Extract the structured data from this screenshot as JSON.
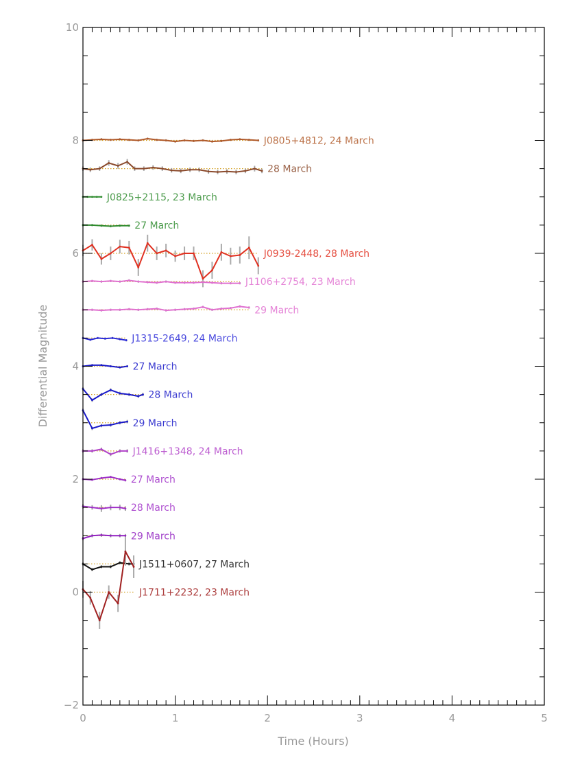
{
  "chart_data": {
    "type": "line",
    "xlabel": "Time (Hours)",
    "ylabel": "Differential Magnitude",
    "xlim": [
      0,
      5
    ],
    "ylim": [
      -2,
      10
    ],
    "xticks": [
      0,
      1,
      2,
      3,
      4,
      5
    ],
    "yticks": [
      -2,
      0,
      2,
      4,
      6,
      8,
      10
    ],
    "grid": false,
    "legend": "inline labels at right end of each series",
    "series": [
      {
        "name": "J0805+4812, 24 March",
        "color": "#b05a2a",
        "offset": 8.0,
        "x": [
          0.0,
          0.1,
          0.2,
          0.3,
          0.4,
          0.5,
          0.6,
          0.7,
          0.8,
          0.9,
          1.0,
          1.1,
          1.2,
          1.3,
          1.4,
          1.5,
          1.6,
          1.7,
          1.8,
          1.9
        ],
        "y": [
          8.0,
          8.01,
          8.02,
          8.01,
          8.02,
          8.01,
          8.0,
          8.03,
          8.01,
          8.0,
          7.98,
          8.0,
          7.99,
          8.0,
          7.98,
          7.99,
          8.01,
          8.02,
          8.01,
          8.0
        ],
        "err": [
          0.02,
          0.02,
          0.02,
          0.02,
          0.02,
          0.02,
          0.02,
          0.02,
          0.02,
          0.02,
          0.02,
          0.02,
          0.02,
          0.02,
          0.02,
          0.02,
          0.02,
          0.02,
          0.02,
          0.02
        ]
      },
      {
        "name": "28 March",
        "color": "#8b4a2c",
        "offset": 7.5,
        "x": [
          0.0,
          0.08,
          0.18,
          0.28,
          0.38,
          0.48,
          0.56,
          0.66,
          0.76,
          0.86,
          0.96,
          1.06,
          1.16,
          1.26,
          1.36,
          1.46,
          1.56,
          1.66,
          1.76,
          1.86,
          1.94
        ],
        "y": [
          7.5,
          7.48,
          7.5,
          7.6,
          7.55,
          7.62,
          7.5,
          7.5,
          7.52,
          7.5,
          7.47,
          7.46,
          7.48,
          7.48,
          7.45,
          7.44,
          7.45,
          7.44,
          7.46,
          7.5,
          7.46
        ],
        "err": [
          0.04,
          0.04,
          0.04,
          0.05,
          0.05,
          0.05,
          0.04,
          0.04,
          0.04,
          0.04,
          0.04,
          0.04,
          0.04,
          0.04,
          0.04,
          0.04,
          0.04,
          0.04,
          0.04,
          0.05,
          0.04
        ]
      },
      {
        "name": "J0825+2115, 23 March",
        "color": "#2e8b2e",
        "offset": 7.0,
        "x": [
          0.0,
          0.05,
          0.1,
          0.15,
          0.2
        ],
        "y": [
          7.0,
          7.0,
          7.0,
          7.0,
          7.0
        ],
        "err": [
          0.01,
          0.01,
          0.01,
          0.01,
          0.01
        ]
      },
      {
        "name": "27 March",
        "color": "#2e8b2e",
        "offset": 6.5,
        "x": [
          0.0,
          0.1,
          0.2,
          0.3,
          0.4,
          0.5
        ],
        "y": [
          6.5,
          6.5,
          6.49,
          6.48,
          6.49,
          6.49
        ],
        "err": [
          0.02,
          0.02,
          0.02,
          0.02,
          0.02,
          0.02
        ]
      },
      {
        "name": "J0939-2448, 28 March",
        "color": "#e03020",
        "offset": 6.0,
        "x": [
          0.0,
          0.1,
          0.2,
          0.3,
          0.4,
          0.5,
          0.6,
          0.7,
          0.8,
          0.9,
          1.0,
          1.1,
          1.2,
          1.3,
          1.4,
          1.5,
          1.6,
          1.7,
          1.8,
          1.9
        ],
        "y": [
          6.05,
          6.15,
          5.9,
          6.0,
          6.12,
          6.1,
          5.75,
          6.18,
          6.0,
          6.05,
          5.95,
          6.0,
          6.0,
          5.55,
          5.7,
          6.02,
          5.95,
          5.97,
          6.1,
          5.78
        ],
        "err": [
          0.1,
          0.1,
          0.1,
          0.12,
          0.12,
          0.12,
          0.15,
          0.15,
          0.12,
          0.12,
          0.1,
          0.12,
          0.12,
          0.15,
          0.15,
          0.15,
          0.15,
          0.15,
          0.2,
          0.15
        ]
      },
      {
        "name": "J1106+2754, 23 March",
        "color": "#e070d0",
        "offset": 5.5,
        "x": [
          0.0,
          0.1,
          0.2,
          0.3,
          0.4,
          0.5,
          0.6,
          0.7,
          0.8,
          0.9,
          1.0,
          1.1,
          1.2,
          1.3,
          1.4,
          1.5,
          1.6,
          1.7
        ],
        "y": [
          5.5,
          5.51,
          5.5,
          5.51,
          5.5,
          5.52,
          5.5,
          5.49,
          5.48,
          5.5,
          5.48,
          5.48,
          5.48,
          5.49,
          5.48,
          5.47,
          5.47,
          5.47
        ],
        "err": [
          0.02,
          0.02,
          0.02,
          0.02,
          0.02,
          0.02,
          0.02,
          0.02,
          0.02,
          0.02,
          0.02,
          0.02,
          0.02,
          0.02,
          0.02,
          0.02,
          0.02,
          0.02
        ]
      },
      {
        "name": "29 March",
        "color": "#e070d0",
        "offset": 5.0,
        "x": [
          0.0,
          0.1,
          0.2,
          0.3,
          0.4,
          0.5,
          0.6,
          0.7,
          0.8,
          0.9,
          1.0,
          1.1,
          1.2,
          1.3,
          1.4,
          1.5,
          1.6,
          1.7,
          1.8
        ],
        "y": [
          5.0,
          5.0,
          4.99,
          5.0,
          5.0,
          5.01,
          5.0,
          5.01,
          5.02,
          4.99,
          5.0,
          5.01,
          5.02,
          5.05,
          5.0,
          5.02,
          5.03,
          5.06,
          5.04
        ],
        "err": [
          0.02,
          0.02,
          0.02,
          0.02,
          0.02,
          0.02,
          0.02,
          0.02,
          0.02,
          0.02,
          0.02,
          0.02,
          0.02,
          0.02,
          0.02,
          0.02,
          0.02,
          0.02,
          0.02
        ]
      },
      {
        "name": "J1315-2649, 24 March",
        "color": "#2a2ad8",
        "offset": 4.5,
        "x": [
          0.0,
          0.08,
          0.16,
          0.24,
          0.32,
          0.4,
          0.47
        ],
        "y": [
          4.5,
          4.47,
          4.5,
          4.49,
          4.5,
          4.48,
          4.46
        ],
        "err": [
          0.02,
          0.02,
          0.02,
          0.02,
          0.02,
          0.02,
          0.02
        ]
      },
      {
        "name": "27 March",
        "color": "#1818c8",
        "offset": 4.0,
        "x": [
          0.0,
          0.1,
          0.2,
          0.3,
          0.4,
          0.48
        ],
        "y": [
          4.0,
          4.02,
          4.02,
          4.0,
          3.98,
          4.0
        ],
        "err": [
          0.02,
          0.02,
          0.02,
          0.02,
          0.02,
          0.02
        ]
      },
      {
        "name": "28 March",
        "color": "#1818c8",
        "offset": 3.5,
        "x": [
          0.0,
          0.1,
          0.2,
          0.3,
          0.4,
          0.5,
          0.6,
          0.65
        ],
        "y": [
          3.6,
          3.4,
          3.5,
          3.58,
          3.52,
          3.5,
          3.47,
          3.5
        ],
        "err": [
          0.03,
          0.03,
          0.03,
          0.03,
          0.03,
          0.03,
          0.03,
          0.03
        ]
      },
      {
        "name": "29 March",
        "color": "#1818c8",
        "offset": 3.0,
        "x": [
          0.0,
          0.1,
          0.2,
          0.3,
          0.4,
          0.48
        ],
        "y": [
          3.22,
          2.9,
          2.95,
          2.96,
          3.0,
          3.02
        ],
        "err": [
          0.03,
          0.03,
          0.03,
          0.03,
          0.03,
          0.03
        ]
      },
      {
        "name": "J1416+1348, 24 March",
        "color": "#b040c8",
        "offset": 2.5,
        "x": [
          0.0,
          0.1,
          0.2,
          0.3,
          0.4,
          0.48
        ],
        "y": [
          2.5,
          2.5,
          2.53,
          2.44,
          2.5,
          2.5
        ],
        "err": [
          0.03,
          0.03,
          0.03,
          0.03,
          0.03,
          0.03
        ]
      },
      {
        "name": "27 March",
        "color": "#a030c8",
        "offset": 2.0,
        "x": [
          0.0,
          0.1,
          0.2,
          0.3,
          0.4,
          0.46
        ],
        "y": [
          2.0,
          1.99,
          2.02,
          2.04,
          2.0,
          1.98
        ],
        "err": [
          0.02,
          0.02,
          0.02,
          0.02,
          0.02,
          0.02
        ]
      },
      {
        "name": "28 March",
        "color": "#a030c8",
        "offset": 1.5,
        "x": [
          0.0,
          0.1,
          0.2,
          0.3,
          0.4,
          0.46
        ],
        "y": [
          1.52,
          1.5,
          1.48,
          1.5,
          1.5,
          1.48
        ],
        "err": [
          0.04,
          0.04,
          0.06,
          0.05,
          0.05,
          0.04
        ]
      },
      {
        "name": "29 March",
        "color": "#9020c0",
        "offset": 1.0,
        "x": [
          0.0,
          0.1,
          0.2,
          0.3,
          0.4,
          0.46
        ],
        "y": [
          0.95,
          1.0,
          1.01,
          1.0,
          1.0,
          1.0
        ],
        "err": [
          0.03,
          0.03,
          0.03,
          0.03,
          0.03,
          0.03
        ]
      },
      {
        "name": "J1511+0607, 27 March",
        "color": "#101010",
        "offset": 0.5,
        "x": [
          0.0,
          0.1,
          0.2,
          0.3,
          0.4,
          0.5,
          0.55
        ],
        "y": [
          0.5,
          0.4,
          0.45,
          0.45,
          0.52,
          0.5,
          0.5
        ],
        "err": [
          0.03,
          0.03,
          0.03,
          0.03,
          0.03,
          0.03,
          0.03
        ]
      },
      {
        "name": "J1711+2232, 23 March",
        "color": "#a02020",
        "offset": 0.0,
        "x": [
          0.0,
          0.08,
          0.18,
          0.28,
          0.38,
          0.46,
          0.55
        ],
        "y": [
          0.05,
          -0.1,
          -0.5,
          0.0,
          -0.2,
          0.72,
          0.45
        ],
        "err": [
          0.15,
          0.12,
          0.15,
          0.12,
          0.15,
          0.25,
          0.2
        ]
      }
    ]
  }
}
